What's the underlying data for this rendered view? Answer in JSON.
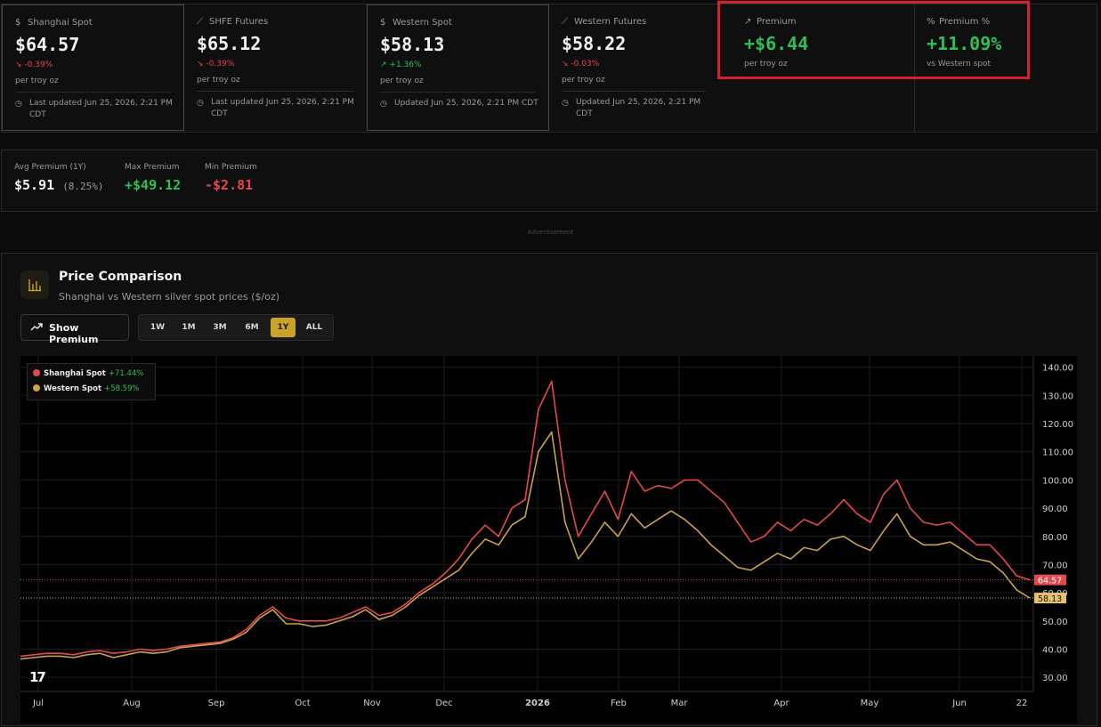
{
  "cards": [
    {
      "title": "Shanghai Spot",
      "icon": "dollar-icon",
      "value": "$64.57",
      "change": "-0.39%",
      "dir": "neg",
      "unit": "per troy oz",
      "updated": "Last updated Jun 25, 2026, 2:21 PM CDT"
    },
    {
      "title": "SHFE Futures",
      "icon": "chart-line-icon",
      "value": "$65.12",
      "change": "-0.39%",
      "dir": "neg",
      "unit": "per troy oz",
      "updated": "Last updated Jun 25, 2026, 2:21 PM CDT"
    },
    {
      "title": "Western Spot",
      "icon": "dollar-icon",
      "value": "$58.13",
      "change": "+1.36%",
      "dir": "pos",
      "unit": "per troy oz",
      "updated": "Updated Jun 25, 2026, 2:21 PM CDT"
    },
    {
      "title": "Western Futures",
      "icon": "chart-line-icon",
      "value": "$58.22",
      "change": "-0.03%",
      "dir": "neg",
      "unit": "per troy oz",
      "updated": "Updated Jun 25, 2026, 2:21 PM CDT"
    },
    {
      "title": "Premium",
      "icon": "trending-up-icon",
      "value": "+$6.44",
      "unit": "per troy oz"
    },
    {
      "title": "Premium %",
      "icon": "percent-icon",
      "value": "+11.09%",
      "unit": "vs Western spot"
    }
  ],
  "stats": {
    "avg_label": "Avg Premium (1Y)",
    "avg_value": "$5.91",
    "avg_pct": "(8.25%)",
    "max_label": "Max Premium",
    "max_value": "+$49.12",
    "min_label": "Min Premium",
    "min_value": "-$2.81"
  },
  "ad_label": "Advertisement",
  "panel": {
    "title": "Price Comparison",
    "subtitle": "Shanghai vs Western silver spot prices ($/oz)",
    "show_premium": "Show Premium",
    "ranges": [
      "1W",
      "1M",
      "3M",
      "6M",
      "1Y",
      "ALL"
    ],
    "active_range": "1Y"
  },
  "colors": {
    "shanghai": "#e5484d",
    "western": "#c9a24a",
    "up": "#2fbf58",
    "down": "#e5484d"
  },
  "chart_data": {
    "type": "line",
    "x_ticks": [
      "Jul",
      "Aug",
      "Sep",
      "Oct",
      "Nov",
      "Dec",
      "2026",
      "Feb",
      "Mar",
      "Apr",
      "May",
      "Jun",
      "22"
    ],
    "y_ticks": [
      "30.00",
      "40.00",
      "50.00",
      "60.00",
      "70.00",
      "80.00",
      "90.00",
      "100.00",
      "110.00",
      "120.00",
      "130.00",
      "140.00"
    ],
    "ylim": [
      25,
      144
    ],
    "legend": [
      {
        "name": "Shanghai Spot",
        "change": "+71.44%"
      },
      {
        "name": "Western Spot",
        "change": "+58.59%"
      }
    ],
    "last_labels": {
      "shanghai": "64.57",
      "western": "58.13"
    },
    "series": [
      {
        "name": "Shanghai Spot",
        "values": [
          37.5,
          38,
          38.5,
          38.5,
          38,
          39,
          39.5,
          38.5,
          39,
          40,
          39.5,
          40,
          41,
          41.5,
          42,
          42.5,
          44,
          47,
          52,
          55,
          51,
          50,
          50,
          50,
          51,
          53,
          55,
          52,
          53,
          56,
          60,
          63,
          67,
          72,
          79,
          84,
          80,
          90,
          93,
          125,
          135,
          100,
          80,
          88,
          96,
          86,
          103,
          96,
          98,
          97,
          100,
          100,
          96,
          92,
          85,
          78,
          80,
          85,
          82,
          86,
          84,
          88,
          93,
          88,
          85,
          95,
          100,
          90,
          85,
          84,
          85,
          81,
          77,
          77,
          72,
          66,
          64.57
        ]
      },
      {
        "name": "Western Spot",
        "values": [
          36.5,
          37,
          37.5,
          37.5,
          37,
          38,
          38.5,
          37,
          38,
          39,
          38.5,
          39,
          40.5,
          41,
          41.5,
          42,
          43.5,
          46,
          51,
          54,
          49,
          49,
          48,
          48.5,
          50,
          51.5,
          54,
          50.5,
          52,
          55,
          59,
          62,
          65,
          68,
          74,
          79,
          77,
          84,
          87,
          110,
          117,
          85,
          72,
          78,
          85,
          80,
          88,
          83,
          86,
          89,
          86,
          82,
          77,
          73,
          69,
          68,
          71,
          74,
          72,
          76,
          75,
          79,
          80,
          77,
          75,
          82,
          88,
          80,
          77,
          77,
          78,
          75,
          72,
          71,
          67,
          61,
          58.13
        ]
      }
    ]
  }
}
